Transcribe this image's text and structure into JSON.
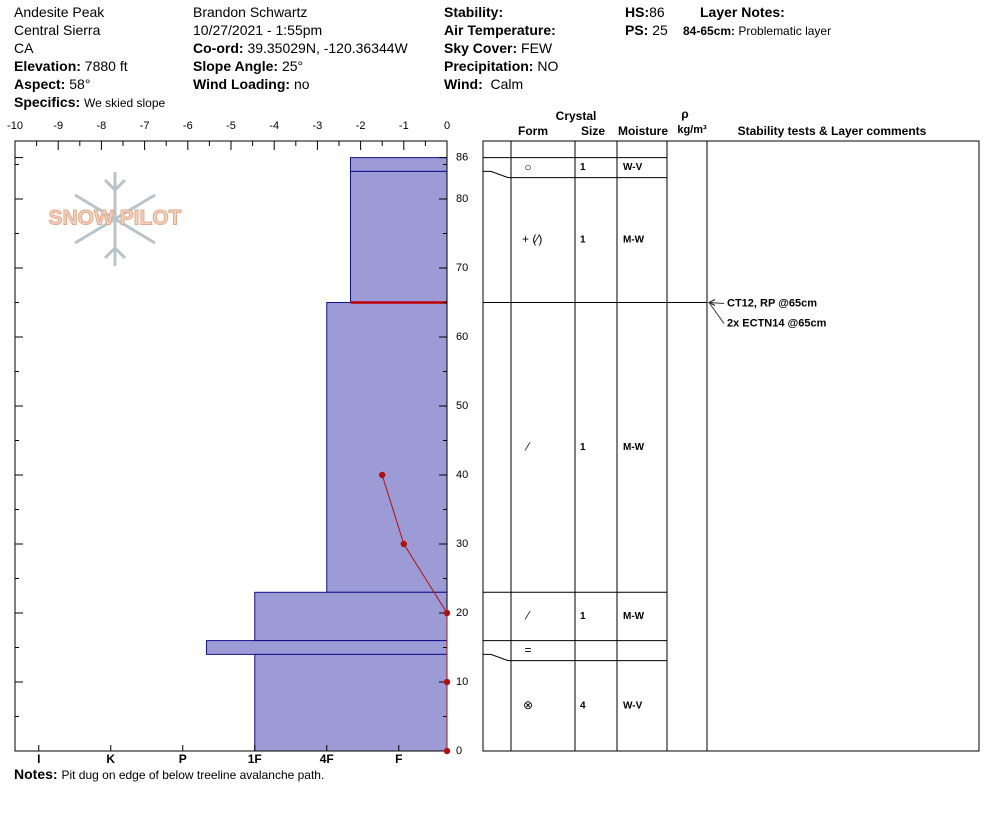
{
  "header": {
    "site": "Andesite Peak",
    "range": "Central Sierra",
    "state": "CA",
    "elevation": {
      "label": "Elevation:",
      "value": "7880 ft"
    },
    "aspect": {
      "label": "Aspect:",
      "value": "58°"
    },
    "specifics": {
      "label": "Specifics:",
      "value": "We skied slope"
    },
    "observer": "Brandon Schwartz",
    "datetime": "10/27/2021 - 1:55pm",
    "coord": {
      "label": "Co-ord:",
      "value": "39.35029N, -120.36344W"
    },
    "slope": {
      "label": "Slope Angle:",
      "value": "25°"
    },
    "wind_loading": {
      "label": "Wind Loading:",
      "value": "no"
    },
    "stability": {
      "label": "Stability:"
    },
    "air_temp": {
      "label": "Air Temperature:"
    },
    "sky": {
      "label": "Sky Cover:",
      "value": "FEW"
    },
    "precip": {
      "label": "Precipitation:",
      "value": "NO"
    },
    "wind": {
      "label": "Wind:",
      "value": "Calm"
    },
    "hs": {
      "label": "HS:",
      "value": 86
    },
    "ps": {
      "label": "PS:",
      "value": 25
    },
    "layer_notes": {
      "label": "Layer Notes:",
      "items": [
        {
          "label": "84-65cm:",
          "value": "Problematic layer"
        }
      ]
    }
  },
  "logo": "SNOW PILOT",
  "chart_data": {
    "type": "snowpit",
    "xlim": [
      -10,
      0
    ],
    "xticks": [
      -10,
      -9,
      -8,
      -7,
      -6,
      -5,
      -4,
      -3,
      -2,
      -1,
      0
    ],
    "xminor": [
      -9.5,
      -8.5,
      -7.5,
      -6.5,
      -5.5,
      -4.5,
      -3.5,
      -2.5,
      -1.5,
      -0.5
    ],
    "ylim": [
      0,
      86
    ],
    "yticks": [
      0,
      10,
      20,
      30,
      40,
      50,
      60,
      70,
      80,
      86
    ],
    "yminor": [
      5,
      15,
      25,
      35,
      45,
      55,
      65,
      75,
      85
    ],
    "hardness_lim": [
      0.33,
      6.33
    ],
    "hardness_ticks": [
      {
        "value": 6,
        "label": "I"
      },
      {
        "value": 5,
        "label": "K"
      },
      {
        "value": 4,
        "label": "P"
      },
      {
        "value": 3,
        "label": "1F"
      },
      {
        "value": 2,
        "label": "4F"
      },
      {
        "value": 1,
        "label": "F"
      }
    ],
    "layer_color": "#9c9bd6",
    "layers": [
      {
        "top": 86,
        "bottom": 84,
        "hardness": 1.67,
        "form": "○",
        "size": 1,
        "moisture": "W-V"
      },
      {
        "top": 84,
        "bottom": 65,
        "hardness": 1.67,
        "form": "+ (⁄)",
        "size": 1,
        "moisture": "M-W"
      },
      {
        "top": 65,
        "bottom": 23,
        "hardness": 2,
        "form": "⁄",
        "size": 1,
        "moisture": "M-W"
      },
      {
        "top": 23,
        "bottom": 16,
        "hardness": 3,
        "form": "⁄",
        "size": 1,
        "moisture": "M-W"
      },
      {
        "top": 16,
        "bottom": 14,
        "hardness": 3.67,
        "form": "="
      },
      {
        "top": 14,
        "bottom": 0,
        "hardness": 3,
        "form": "⊗",
        "size": 4,
        "moisture": "W-V"
      }
    ],
    "concern": {
      "depth": 65,
      "color": "#c00000"
    },
    "temperature": {
      "depths": [
        40,
        30,
        20,
        10,
        0
      ],
      "values": [
        -1.5,
        -1,
        0,
        0,
        0
      ],
      "color": "#b01010"
    },
    "columns": {
      "crystal": "Crystal",
      "form": "Form",
      "size": "Size",
      "moisture": "Moisture",
      "density": "ρ",
      "density_unit": "kg/m³",
      "comments": "Stability tests & Layer comments"
    },
    "tests": [
      {
        "depth": 65,
        "text": "CT12, RP @65cm"
      },
      {
        "depth": 65,
        "text": "2x ECTN14 @65cm"
      }
    ]
  },
  "notes": {
    "label": "Notes:",
    "value": "Pit dug on edge of below treeline avalanche path."
  }
}
